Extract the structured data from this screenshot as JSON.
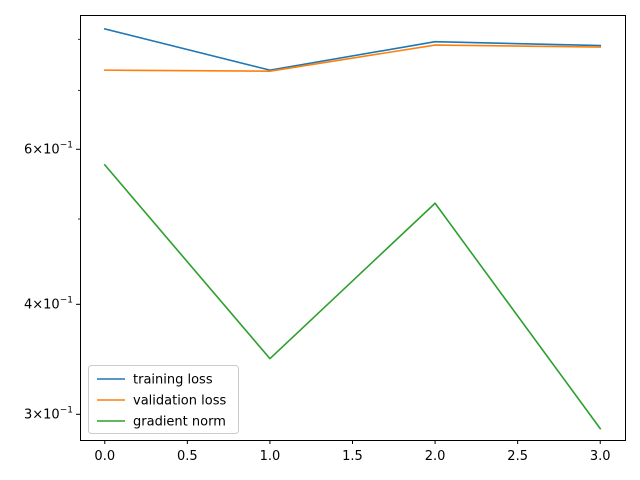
{
  "chart_data": {
    "type": "line",
    "title": "",
    "xlabel": "",
    "ylabel": "",
    "y_scale": "log",
    "xlim": [
      -0.15,
      3.15
    ],
    "ylim": [
      0.2805,
      0.8525
    ],
    "x_ticks": [
      {
        "value": 0.0,
        "label": "0.0"
      },
      {
        "value": 0.5,
        "label": "0.5"
      },
      {
        "value": 1.0,
        "label": "1.0"
      },
      {
        "value": 1.5,
        "label": "1.5"
      },
      {
        "value": 2.0,
        "label": "2.0"
      },
      {
        "value": 2.5,
        "label": "2.5"
      },
      {
        "value": 3.0,
        "label": "3.0"
      }
    ],
    "y_major_ticks": [
      {
        "value": 0.3,
        "base": "3",
        "exp": "−1"
      },
      {
        "value": 0.4,
        "base": "4",
        "exp": "−1"
      },
      {
        "value": 0.6,
        "base": "6",
        "exp": "−1"
      }
    ],
    "y_minor_ticks": [
      0.5,
      0.7,
      0.8
    ],
    "x": [
      0,
      1,
      2,
      3
    ],
    "series": [
      {
        "name": "training loss",
        "color": "#1f77b4",
        "values": [
          0.822,
          0.738,
          0.795,
          0.787
        ]
      },
      {
        "name": "validation loss",
        "color": "#ff7f0e",
        "values": [
          0.738,
          0.736,
          0.788,
          0.784
        ]
      },
      {
        "name": "gradient norm",
        "color": "#2ca02c",
        "values": [
          0.576,
          0.347,
          0.521,
          0.289
        ]
      }
    ],
    "legend_position": "lower-left",
    "grid": false
  }
}
